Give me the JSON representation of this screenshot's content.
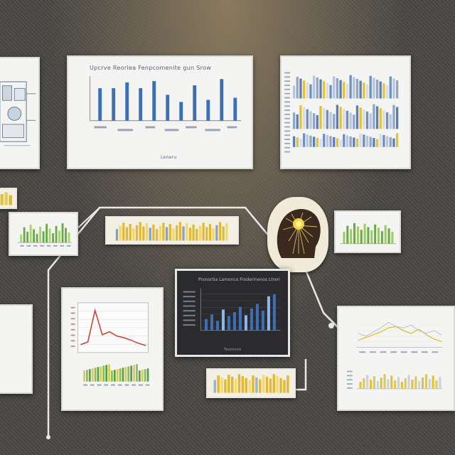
{
  "scene": {
    "description_colors": {
      "wall": "#4b4845",
      "card": "#f4f4f2",
      "bar_blue": "#3d6fb5",
      "bar_yellow": "#e3c23a",
      "bar_green": "#7cbf4a",
      "line_red": "#c7443a",
      "dark_panel": "#2b2b2d"
    }
  },
  "top_chart": {
    "title": "Upcrve Reorlea Fenpcomenite gun Srow",
    "bar_values": [
      0.78,
      0.78,
      0.92,
      0.78,
      0.95,
      0.62,
      0.45,
      0.85,
      0.5,
      1.0,
      0.55
    ],
    "xlabel": "Leneru"
  },
  "dark_chart": {
    "title": "Pronortia Lamonco Froderinenos Ltreri",
    "bar_values": [
      0.3,
      0.42,
      0.25,
      0.55,
      0.38,
      0.48,
      0.62,
      0.4,
      0.58,
      0.7,
      0.52,
      0.9,
      0.95
    ],
    "xlabel": "Toomnon"
  },
  "line_chart": {
    "points": [
      0.12,
      0.18,
      0.92,
      0.35,
      0.42,
      0.32,
      0.28,
      0.22,
      0.15,
      0.1
    ]
  }
}
